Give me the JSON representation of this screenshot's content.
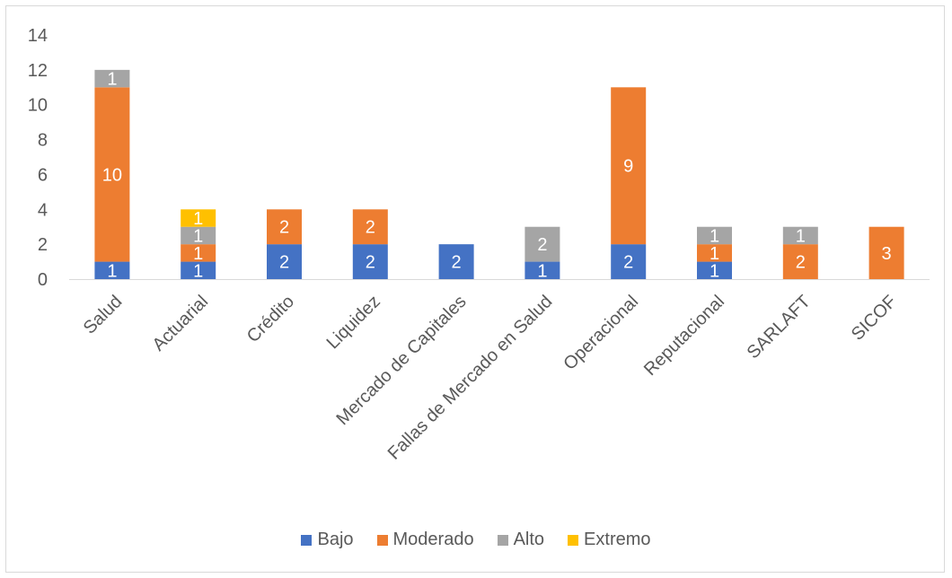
{
  "chart_data": {
    "type": "bar",
    "stacked": true,
    "categories": [
      "Salud",
      "Actuarial",
      "Crédito",
      "Liquidez",
      "Mercado de Capitales",
      "Fallas de Mercado en Salud",
      "Operacional",
      "Reputacional",
      "SARLAFT",
      "SICOF"
    ],
    "series": [
      {
        "name": "Bajo",
        "color": "#4472c4",
        "values": [
          1,
          1,
          2,
          2,
          2,
          1,
          2,
          1,
          0,
          0
        ]
      },
      {
        "name": "Moderado",
        "color": "#ed7d31",
        "values": [
          10,
          1,
          2,
          2,
          0,
          0,
          9,
          1,
          2,
          3
        ]
      },
      {
        "name": "Alto",
        "color": "#a5a5a5",
        "values": [
          1,
          1,
          0,
          0,
          0,
          2,
          0,
          1,
          1,
          0
        ]
      },
      {
        "name": "Extremo",
        "color": "#ffc000",
        "values": [
          0,
          1,
          0,
          0,
          0,
          0,
          0,
          0,
          0,
          0
        ]
      }
    ],
    "ylim": [
      0,
      14
    ],
    "yticks": [
      "0",
      "2",
      "4",
      "6",
      "8",
      "10",
      "12",
      "14"
    ],
    "title": "",
    "xlabel": "",
    "ylabel": "",
    "grid": false,
    "legend": "bottom"
  }
}
